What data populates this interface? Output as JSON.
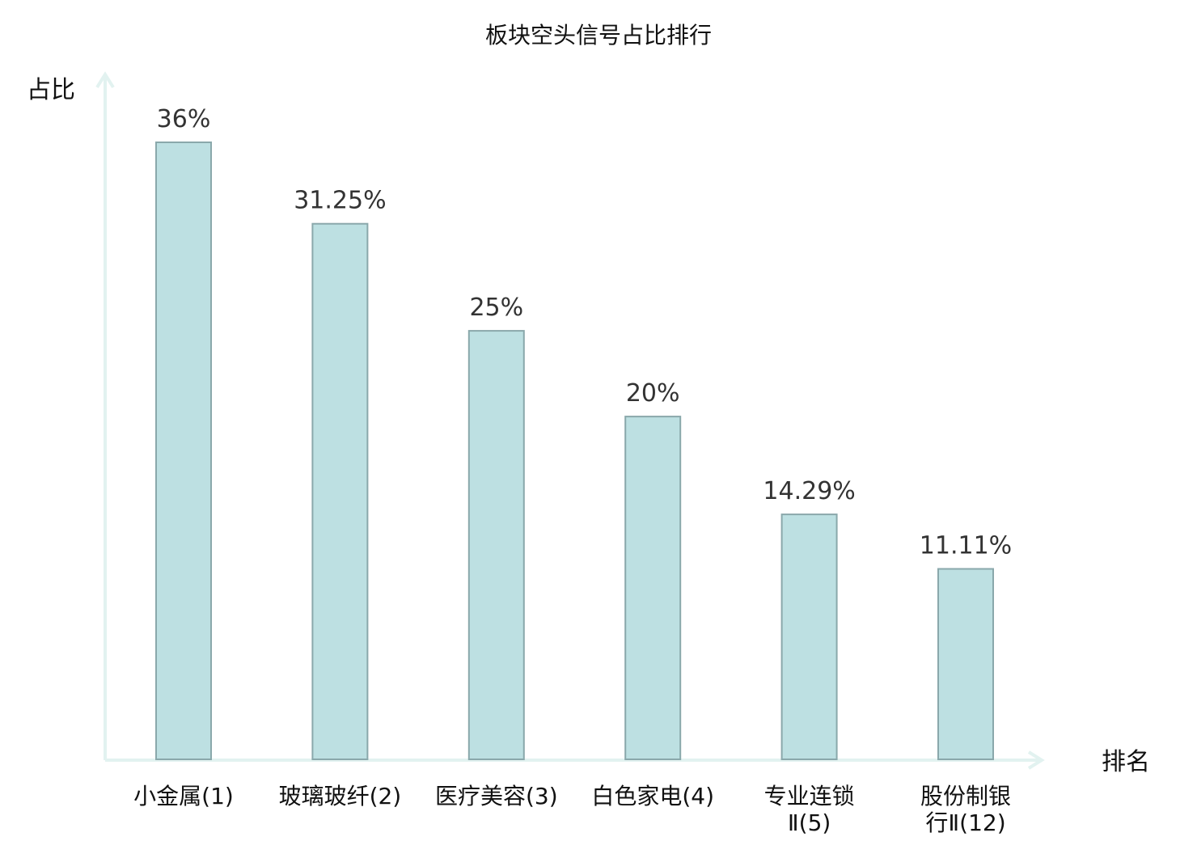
{
  "chart_data": {
    "type": "bar",
    "title": "板块空头信号占比排行",
    "ylabel": "占比",
    "xlabel": "排名",
    "categories": [
      [
        "小金属(1)"
      ],
      [
        "玻璃玻纤(2)"
      ],
      [
        "医疗美容(3)"
      ],
      [
        "白色家电(4)"
      ],
      [
        "专业连锁",
        "Ⅱ(5)"
      ],
      [
        "股份制银",
        "行Ⅱ(12)"
      ]
    ],
    "values": [
      36,
      31.25,
      25,
      20,
      14.29,
      11.11
    ],
    "value_labels": [
      "36%",
      "31.25%",
      "25%",
      "20%",
      "14.29%",
      "11.11%"
    ],
    "ylim": [
      0,
      40
    ],
    "grid": false,
    "colors": {
      "bar_fill": "#bde0e2",
      "bar_edge": "#8aa8ab",
      "axis": "#e2f2f0",
      "highlight_label": "#dd1111",
      "default_label": "#111111"
    },
    "highlight_index": 5
  }
}
